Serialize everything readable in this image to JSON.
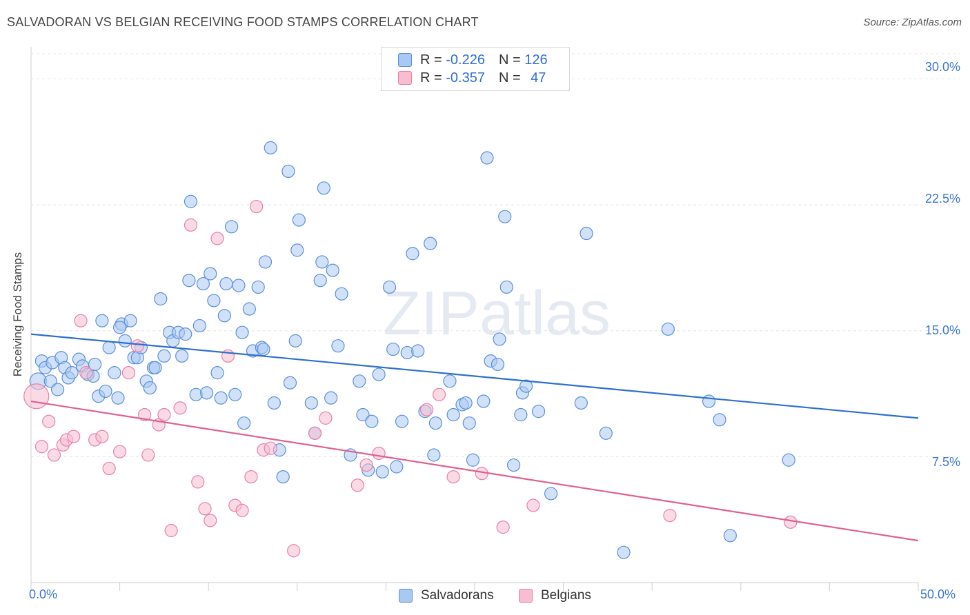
{
  "header": {
    "title": "SALVADORAN VS BELGIAN RECEIVING FOOD STAMPS CORRELATION CHART",
    "source": "Source: ZipAtlas.com"
  },
  "watermark": "ZIPatlas",
  "legend": {
    "rows": [
      {
        "r_label": "R =",
        "r_value": "-0.226",
        "n_label": "N =",
        "n_value": "126"
      },
      {
        "r_label": "R =",
        "r_value": "-0.357",
        "n_label": "N =",
        "n_value": "47"
      }
    ]
  },
  "colors": {
    "salvadoran_fill": "#a9c8f2",
    "salvadoran_stroke": "#5b8fd8",
    "salvadoran_line": "#2e6fd0",
    "belgian_fill": "#f6bed0",
    "belgian_stroke": "#e880a5",
    "belgian_line": "#e0608e",
    "tick_label": "#3a75d0"
  },
  "chart_data": {
    "type": "scatter",
    "title": "SALVADORAN VS BELGIAN RECEIVING FOOD STAMPS CORRELATION CHART",
    "xlabel": "",
    "ylabel": "Receiving Food Stamps",
    "xlim": [
      0,
      50
    ],
    "ylim": [
      0,
      31.5
    ],
    "x_tick_labels": [
      "0.0%",
      "50.0%"
    ],
    "y_ticks": [
      7.5,
      15.0,
      22.5,
      30.0
    ],
    "y_tick_labels": [
      "7.5%",
      "15.0%",
      "22.5%",
      "30.0%"
    ],
    "grid": "horizontal dashed",
    "legend_position": "bottom-center",
    "series": [
      {
        "name": "Salvadorans",
        "r": -0.226,
        "n": 126,
        "trend": {
          "x": [
            0,
            50
          ],
          "y": [
            14.8,
            9.8
          ]
        },
        "points": [
          [
            0.4,
            12.0
          ],
          [
            0.6,
            13.2
          ],
          [
            0.8,
            12.8
          ],
          [
            1.1,
            12.0
          ],
          [
            1.2,
            13.1
          ],
          [
            1.5,
            11.5
          ],
          [
            1.7,
            13.4
          ],
          [
            1.9,
            12.8
          ],
          [
            2.1,
            12.2
          ],
          [
            2.3,
            12.5
          ],
          [
            2.7,
            13.3
          ],
          [
            2.9,
            12.9
          ],
          [
            3.2,
            12.4
          ],
          [
            3.5,
            12.3
          ],
          [
            3.6,
            13.0
          ],
          [
            3.8,
            11.1
          ],
          [
            4.0,
            15.6
          ],
          [
            4.2,
            11.4
          ],
          [
            4.4,
            14.0
          ],
          [
            4.7,
            12.5
          ],
          [
            4.9,
            11.0
          ],
          [
            5.1,
            15.4
          ],
          [
            5.3,
            14.4
          ],
          [
            5.6,
            15.6
          ],
          [
            5.8,
            13.4
          ],
          [
            6.0,
            13.4
          ],
          [
            6.2,
            14.0
          ],
          [
            6.5,
            12.0
          ],
          [
            6.7,
            11.6
          ],
          [
            6.9,
            12.8
          ],
          [
            7.0,
            12.8
          ],
          [
            7.3,
            16.9
          ],
          [
            7.5,
            13.5
          ],
          [
            7.8,
            14.9
          ],
          [
            8.0,
            14.4
          ],
          [
            8.3,
            14.9
          ],
          [
            8.5,
            13.5
          ],
          [
            8.7,
            14.8
          ],
          [
            8.9,
            18.0
          ],
          [
            9.0,
            22.7
          ],
          [
            9.3,
            11.2
          ],
          [
            9.5,
            15.3
          ],
          [
            9.7,
            17.8
          ],
          [
            9.9,
            11.3
          ],
          [
            10.1,
            18.4
          ],
          [
            10.3,
            16.8
          ],
          [
            10.5,
            12.5
          ],
          [
            10.7,
            11.0
          ],
          [
            10.9,
            15.9
          ],
          [
            11.0,
            17.8
          ],
          [
            11.3,
            21.2
          ],
          [
            11.5,
            11.2
          ],
          [
            11.7,
            17.7
          ],
          [
            11.9,
            14.9
          ],
          [
            12.0,
            9.5
          ],
          [
            12.3,
            16.3
          ],
          [
            12.5,
            13.8
          ],
          [
            12.8,
            17.6
          ],
          [
            13.0,
            14.0
          ],
          [
            13.2,
            19.1
          ],
          [
            13.5,
            25.9
          ],
          [
            13.7,
            10.7
          ],
          [
            14.0,
            7.9
          ],
          [
            14.2,
            6.3
          ],
          [
            14.5,
            24.5
          ],
          [
            14.6,
            11.9
          ],
          [
            14.9,
            14.4
          ],
          [
            15.0,
            19.8
          ],
          [
            15.1,
            21.6
          ],
          [
            15.8,
            10.7
          ],
          [
            16.0,
            8.9
          ],
          [
            16.3,
            18.0
          ],
          [
            16.4,
            19.1
          ],
          [
            16.5,
            23.5
          ],
          [
            16.9,
            11.0
          ],
          [
            17.0,
            18.6
          ],
          [
            17.3,
            14.1
          ],
          [
            17.5,
            17.2
          ],
          [
            18.0,
            7.6
          ],
          [
            18.5,
            12.0
          ],
          [
            18.7,
            10.0
          ],
          [
            19.0,
            6.7
          ],
          [
            19.2,
            9.6
          ],
          [
            19.6,
            12.4
          ],
          [
            19.8,
            6.6
          ],
          [
            20.2,
            17.6
          ],
          [
            20.4,
            13.9
          ],
          [
            20.6,
            6.9
          ],
          [
            20.9,
            9.6
          ],
          [
            21.2,
            13.7
          ],
          [
            21.5,
            19.6
          ],
          [
            21.8,
            13.8
          ],
          [
            22.2,
            10.2
          ],
          [
            22.5,
            20.2
          ],
          [
            22.7,
            7.6
          ],
          [
            22.8,
            9.5
          ],
          [
            23.6,
            12.0
          ],
          [
            23.8,
            10.0
          ],
          [
            24.3,
            10.6
          ],
          [
            24.5,
            10.7
          ],
          [
            24.7,
            9.5
          ],
          [
            24.9,
            7.3
          ],
          [
            25.5,
            10.8
          ],
          [
            25.7,
            25.3
          ],
          [
            25.9,
            13.2
          ],
          [
            26.3,
            13.0
          ],
          [
            26.4,
            14.5
          ],
          [
            26.7,
            21.8
          ],
          [
            26.8,
            17.6
          ],
          [
            27.2,
            7.0
          ],
          [
            27.6,
            10.0
          ],
          [
            27.7,
            11.3
          ],
          [
            27.9,
            11.7
          ],
          [
            28.6,
            10.2
          ],
          [
            29.3,
            5.3
          ],
          [
            31.0,
            10.7
          ],
          [
            31.3,
            20.8
          ],
          [
            32.4,
            8.9
          ],
          [
            33.4,
            1.8
          ],
          [
            35.9,
            15.1
          ],
          [
            38.2,
            10.8
          ],
          [
            38.8,
            9.7
          ],
          [
            39.4,
            2.8
          ],
          [
            42.7,
            7.3
          ],
          [
            13.1,
            13.9
          ],
          [
            5.0,
            15.2
          ]
        ]
      },
      {
        "name": "Belgians",
        "r": -0.357,
        "n": 47,
        "trend": {
          "x": [
            0,
            50
          ],
          "y": [
            10.8,
            2.5
          ]
        },
        "points": [
          [
            0.3,
            11.1
          ],
          [
            0.6,
            8.1
          ],
          [
            1.0,
            9.6
          ],
          [
            1.3,
            7.6
          ],
          [
            1.8,
            8.2
          ],
          [
            2.0,
            8.5
          ],
          [
            2.4,
            8.7
          ],
          [
            2.8,
            15.6
          ],
          [
            3.1,
            12.5
          ],
          [
            3.6,
            8.5
          ],
          [
            4.0,
            8.7
          ],
          [
            4.4,
            6.8
          ],
          [
            5.0,
            7.8
          ],
          [
            5.5,
            12.5
          ],
          [
            6.0,
            14.1
          ],
          [
            6.4,
            10.0
          ],
          [
            6.6,
            7.6
          ],
          [
            7.2,
            9.4
          ],
          [
            7.5,
            10.0
          ],
          [
            7.9,
            3.1
          ],
          [
            8.4,
            10.4
          ],
          [
            9.0,
            21.3
          ],
          [
            9.4,
            6.0
          ],
          [
            9.8,
            4.4
          ],
          [
            10.1,
            3.7
          ],
          [
            10.5,
            20.5
          ],
          [
            11.1,
            13.5
          ],
          [
            11.5,
            4.6
          ],
          [
            11.9,
            4.3
          ],
          [
            12.4,
            6.3
          ],
          [
            12.7,
            22.4
          ],
          [
            13.1,
            7.9
          ],
          [
            13.5,
            8.0
          ],
          [
            14.8,
            1.9
          ],
          [
            16.0,
            8.9
          ],
          [
            16.6,
            9.8
          ],
          [
            18.4,
            5.8
          ],
          [
            18.9,
            7.0
          ],
          [
            19.6,
            7.7
          ],
          [
            22.3,
            10.3
          ],
          [
            23.0,
            11.2
          ],
          [
            23.8,
            6.3
          ],
          [
            25.4,
            6.5
          ],
          [
            26.6,
            3.3
          ],
          [
            28.3,
            4.6
          ],
          [
            36.0,
            4.0
          ],
          [
            42.8,
            3.6
          ]
        ]
      }
    ]
  },
  "bottom_legend": {
    "items": [
      "Salvadorans",
      "Belgians"
    ]
  }
}
